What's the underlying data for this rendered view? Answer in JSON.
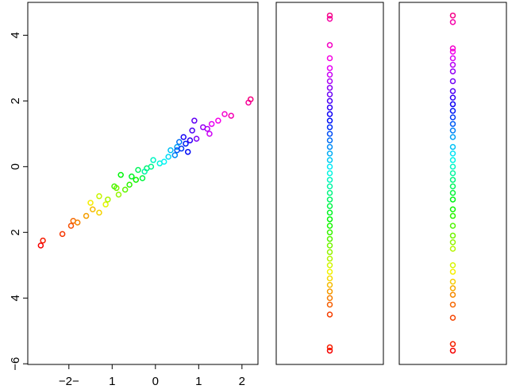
{
  "chart_data": [
    {
      "type": "scatter",
      "palette": "rainbow",
      "xlim": [
        -2.95,
        2.37
      ],
      "ylim": [
        -6.02,
        5.0
      ],
      "xticks": [
        {
          "value": -2,
          "label": "−2−"
        },
        {
          "value": -1,
          "label": "1"
        },
        0,
        1,
        2
      ],
      "yticks": [
        4,
        2,
        0,
        {
          "value": -2,
          "label": "2"
        },
        {
          "value": -4,
          "label": "4"
        },
        {
          "value": -6,
          "label": "−6"
        }
      ],
      "x": [
        -2.65,
        -2.6,
        -2.15,
        -1.95,
        -1.9,
        -1.8,
        -1.6,
        -1.45,
        -1.3,
        -1.5,
        -1.15,
        -1.3,
        -1.1,
        -0.85,
        -0.9,
        -0.7,
        -0.95,
        -0.6,
        -0.45,
        -0.8,
        -0.55,
        -0.3,
        -0.4,
        -0.2,
        -0.1,
        -0.25,
        -0.05,
        0.1,
        0.2,
        0.3,
        0.35,
        0.5,
        0.45,
        0.55,
        0.5,
        0.6,
        0.7,
        0.75,
        0.65,
        0.8,
        0.85,
        0.9,
        0.95,
        1.1,
        1.2,
        1.25,
        1.3,
        1.45,
        1.6,
        1.75,
        2.15,
        2.2
      ],
      "values": [
        -2.4,
        -2.25,
        -2.05,
        -1.8,
        -1.65,
        -1.7,
        -1.5,
        -1.3,
        -1.4,
        -1.1,
        -1.15,
        -0.9,
        -1.0,
        -0.85,
        -0.65,
        -0.7,
        -0.6,
        -0.55,
        -0.4,
        -0.25,
        -0.3,
        -0.35,
        -0.1,
        -0.05,
        0.0,
        -0.15,
        0.2,
        0.1,
        0.15,
        0.3,
        0.5,
        0.6,
        0.35,
        0.75,
        0.5,
        0.55,
        0.7,
        0.45,
        0.9,
        0.8,
        1.1,
        1.4,
        0.85,
        1.2,
        1.15,
        1.0,
        1.3,
        1.4,
        1.6,
        1.55,
        1.95,
        2.05
      ]
    },
    {
      "type": "strip",
      "palette": "rainbow",
      "ylim": [
        -6.02,
        5.0
      ],
      "values": [
        -5.6,
        -5.5,
        -4.5,
        -4.2,
        -4.0,
        -3.8,
        -3.6,
        -3.4,
        -3.2,
        -3.0,
        -2.8,
        -2.6,
        -2.4,
        -2.2,
        -2.0,
        -1.8,
        -1.6,
        -1.4,
        -1.2,
        -1.0,
        -0.8,
        -0.6,
        -0.4,
        -0.2,
        0,
        0.2,
        0.4,
        0.6,
        0.8,
        1.0,
        1.2,
        1.4,
        1.6,
        1.8,
        2.0,
        2.2,
        2.4,
        2.6,
        2.8,
        3.0,
        3.3,
        3.7,
        4.5,
        4.6
      ]
    },
    {
      "type": "strip",
      "palette": "rainbow",
      "ylim": [
        -6.02,
        5.0
      ],
      "values": [
        -5.6,
        -5.4,
        -4.6,
        -4.2,
        -3.9,
        -3.7,
        -3.5,
        -3.2,
        -3.0,
        -2.5,
        -2.3,
        -2.1,
        -1.8,
        -1.5,
        -1.3,
        -1.0,
        -0.8,
        -0.6,
        -0.4,
        -0.2,
        0,
        0.2,
        0.4,
        0.6,
        0.9,
        1.1,
        1.3,
        1.5,
        1.7,
        1.9,
        2.1,
        2.3,
        2.6,
        2.9,
        3.1,
        3.3,
        3.5,
        3.6,
        4.4,
        4.6
      ]
    }
  ]
}
